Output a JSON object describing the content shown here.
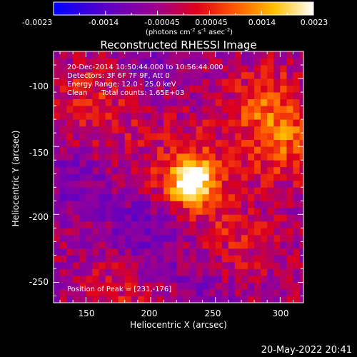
{
  "colorbar": {
    "ticks": [
      "-0.0023",
      "-0.0014",
      "-0.00045",
      "0.00045",
      "0.0014",
      "0.0023"
    ],
    "unit_label": "(photons cm",
    "unit_exp1": "-2",
    "unit_mid": " s",
    "unit_exp2": "-1",
    "unit_end": " asec",
    "unit_exp3": "-2",
    "unit_close": ")"
  },
  "title": "Reconstructed RHESSI Image",
  "annotations": {
    "line1": "20-Dec-2014 10:50:44.000 to 10:56:44.000",
    "line2": "Detectors: 3F 6F 7F 9F, Att 0",
    "line3": "Energy Range: 12.0 - 25.0 keV",
    "line4_a": "Clean",
    "line4_b": "Total counts: 1.65E+03",
    "peak": "Position of Peak = [231,-176]"
  },
  "footer_timestamp": "20-May-2022 20:41",
  "chart_data": {
    "type": "heatmap",
    "title": "Reconstructed RHESSI Image",
    "xlabel": "Heliocentric X (arcsec)",
    "ylabel": "Heliocentric Y (arcsec)",
    "xlim": [
      125,
      318
    ],
    "ylim": [
      -265,
      -80
    ],
    "x_ticks": [
      150,
      200,
      250,
      300
    ],
    "y_ticks": [
      -100,
      -150,
      -200,
      -250
    ],
    "zlim": [
      -0.0023,
      0.0023
    ],
    "colormap": "blue-purple-red-orange-yellow-white",
    "peak": {
      "x": 231,
      "y": -176
    },
    "blobs": [
      {
        "x": 231,
        "y": -176,
        "sigma": 12,
        "amp": 0.0023
      },
      {
        "x": 230,
        "y": -176,
        "sigma": 28,
        "amp": 0.0009
      },
      {
        "x": 290,
        "y": -120,
        "sigma": 20,
        "amp": 0.0011
      },
      {
        "x": 305,
        "y": -150,
        "sigma": 18,
        "amp": 0.001
      },
      {
        "x": 160,
        "y": -130,
        "sigma": 22,
        "amp": 0.0006
      },
      {
        "x": 150,
        "y": -105,
        "sigma": 12,
        "amp": 0.0004
      },
      {
        "x": 175,
        "y": -255,
        "sigma": 18,
        "amp": 0.0006
      },
      {
        "x": 270,
        "y": -220,
        "sigma": 20,
        "amp": 0.0005
      },
      {
        "x": 205,
        "y": -90,
        "sigma": 15,
        "amp": -0.0005
      },
      {
        "x": 200,
        "y": -210,
        "sigma": 22,
        "amp": -0.0009
      },
      {
        "x": 140,
        "y": -175,
        "sigma": 20,
        "amp": -0.0006
      },
      {
        "x": 240,
        "y": -255,
        "sigma": 15,
        "amp": -0.0004
      }
    ]
  }
}
